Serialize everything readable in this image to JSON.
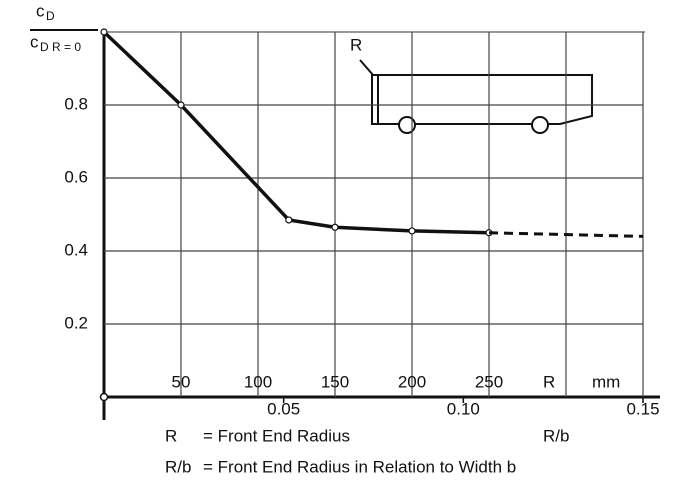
{
  "chart_data": {
    "type": "line",
    "ylabel": {
      "numerator": "c",
      "numerator_sub": "D",
      "denominator": "c",
      "denominator_sub": "D R = 0"
    },
    "xlabel": "R",
    "xunit": "mm",
    "x2label": "R/b",
    "ylim": [
      0,
      1.0
    ],
    "yticks": [
      0.2,
      0.4,
      0.6,
      0.8
    ],
    "xlim": [
      0,
      350
    ],
    "xticks": [
      50,
      100,
      150,
      200,
      250
    ],
    "xgrid": [
      50,
      100,
      150,
      200,
      250,
      300,
      350
    ],
    "x2lim": [
      0,
      0.15
    ],
    "x2ticks": [
      0.05,
      {
        "value": 0.1,
        "label": "0.10"
      },
      0.15
    ],
    "grid": true,
    "color": "#111111",
    "series": [
      {
        "x": [
          0,
          50,
          120,
          150,
          200,
          250
        ],
        "values": [
          1.0,
          0.8,
          0.485,
          0.465,
          0.455,
          0.45
        ],
        "style": "solid"
      },
      {
        "x": [
          250,
          350
        ],
        "values": [
          0.45,
          0.44
        ],
        "style": "dashed"
      }
    ],
    "inset_label": "R",
    "notes": [
      {
        "symbol": "R",
        "text": "= Front End Radius"
      },
      {
        "symbol": "R/b",
        "text": "= Front End Radius in Relation to Width b"
      }
    ]
  }
}
